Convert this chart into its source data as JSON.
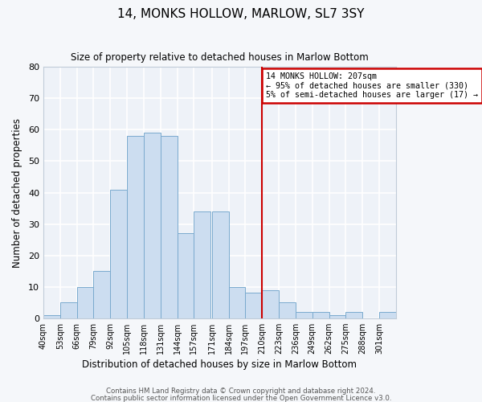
{
  "title": "14, MONKS HOLLOW, MARLOW, SL7 3SY",
  "subtitle": "Size of property relative to detached houses in Marlow Bottom",
  "xlabel": "Distribution of detached houses by size in Marlow Bottom",
  "ylabel": "Number of detached properties",
  "bar_color": "#ccddf0",
  "bar_edge_color": "#7aaace",
  "plot_bg_color": "#eef2f8",
  "fig_bg_color": "#f5f7fa",
  "grid_color": "#ffffff",
  "bin_edges": [
    40,
    53,
    66,
    79,
    92,
    105,
    118,
    131,
    144,
    157,
    171,
    184,
    197,
    210,
    223,
    236,
    249,
    262,
    275,
    288,
    301,
    314
  ],
  "bin_labels": [
    "40sqm",
    "53sqm",
    "66sqm",
    "79sqm",
    "92sqm",
    "105sqm",
    "118sqm",
    "131sqm",
    "144sqm",
    "157sqm",
    "171sqm",
    "184sqm",
    "197sqm",
    "210sqm",
    "223sqm",
    "236sqm",
    "249sqm",
    "262sqm",
    "275sqm",
    "288sqm",
    "301sqm"
  ],
  "counts": [
    1,
    5,
    10,
    15,
    41,
    58,
    59,
    58,
    27,
    34,
    34,
    10,
    8,
    9,
    5,
    2,
    2,
    1,
    2,
    0,
    2
  ],
  "vline_x": 210,
  "vline_color": "#cc0000",
  "annotation_title": "14 MONKS HOLLOW: 207sqm",
  "annotation_line1": "← 95% of detached houses are smaller (330)",
  "annotation_line2": "5% of semi-detached houses are larger (17) →",
  "annotation_box_color": "#cc0000",
  "ylim": [
    0,
    80
  ],
  "yticks": [
    0,
    10,
    20,
    30,
    40,
    50,
    60,
    70,
    80
  ],
  "footer1": "Contains HM Land Registry data © Crown copyright and database right 2024.",
  "footer2": "Contains public sector information licensed under the Open Government Licence v3.0."
}
